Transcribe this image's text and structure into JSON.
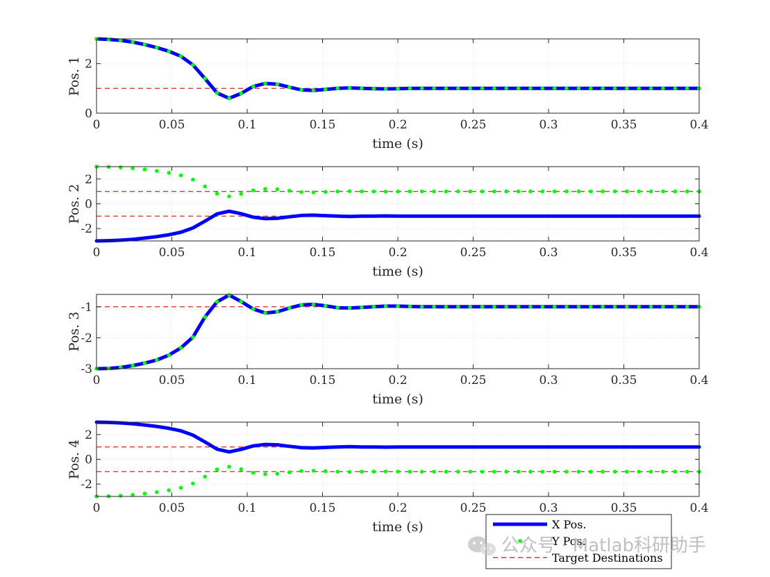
{
  "chart_data": [
    {
      "type": "line",
      "ylabel": "Pos. 1",
      "xlabel": "time (s)",
      "xlim": [
        0,
        0.4
      ],
      "ylim": [
        0,
        3
      ],
      "xticks": [
        0,
        0.05,
        0.1,
        0.15,
        0.2,
        0.25,
        0.3,
        0.35,
        0.4
      ],
      "xtick_labels": [
        "0",
        "0.05",
        "0.1",
        "0.15",
        "0.2",
        "0.25",
        "0.3",
        "0.35",
        "0.4"
      ],
      "yticks": [
        0,
        2
      ],
      "ytick_labels": [
        "0",
        "2"
      ],
      "grid": true,
      "x": [
        0,
        0.008,
        0.016,
        0.024,
        0.032,
        0.04,
        0.048,
        0.056,
        0.064,
        0.072,
        0.08,
        0.088,
        0.096,
        0.104,
        0.112,
        0.12,
        0.128,
        0.136,
        0.144,
        0.152,
        0.16,
        0.168,
        0.176,
        0.184,
        0.192,
        0.2,
        0.208,
        0.216,
        0.224,
        0.232,
        0.24,
        0.248,
        0.256,
        0.264,
        0.272,
        0.28,
        0.288,
        0.296,
        0.304,
        0.312,
        0.32,
        0.328,
        0.336,
        0.344,
        0.352,
        0.36,
        0.368,
        0.376,
        0.384,
        0.392,
        0.4
      ],
      "series": [
        {
          "values": [
            3.0,
            2.98,
            2.94,
            2.87,
            2.77,
            2.65,
            2.5,
            2.3,
            1.95,
            1.4,
            0.82,
            0.6,
            0.8,
            1.08,
            1.2,
            1.17,
            1.05,
            0.94,
            0.92,
            0.96,
            1.0,
            1.02,
            1.0,
            0.99,
            0.98,
            0.99,
            1.0,
            1.0,
            1.0,
            1.0,
            1.0,
            1.0,
            1.0,
            1.0,
            1.0,
            1.0,
            1.0,
            1.0,
            1.0,
            1.0,
            1.0,
            1.0,
            1.0,
            1.0,
            1.0,
            1.0,
            1.0,
            1.0,
            1.0,
            1.0,
            1.0
          ]
        },
        {
          "values": [
            3.0,
            2.98,
            2.94,
            2.87,
            2.77,
            2.65,
            2.5,
            2.3,
            1.95,
            1.4,
            0.82,
            0.6,
            0.8,
            1.08,
            1.2,
            1.17,
            1.05,
            0.94,
            0.92,
            0.96,
            1.0,
            1.02,
            1.0,
            0.99,
            0.98,
            0.99,
            1.0,
            1.0,
            1.0,
            1.0,
            1.0,
            1.0,
            1.0,
            1.0,
            1.0,
            1.0,
            1.0,
            1.0,
            1.0,
            1.0,
            1.0,
            1.0,
            1.0,
            1.0,
            1.0,
            1.0,
            1.0,
            1.0,
            1.0,
            1.0,
            1.0
          ]
        }
      ],
      "targets": [
        1
      ]
    },
    {
      "type": "line",
      "ylabel": "Pos. 2",
      "xlabel": "time (s)",
      "xlim": [
        0,
        0.4
      ],
      "ylim": [
        -3,
        3
      ],
      "xticks": [
        0,
        0.05,
        0.1,
        0.15,
        0.2,
        0.25,
        0.3,
        0.35,
        0.4
      ],
      "xtick_labels": [
        "0",
        "0.05",
        "0.1",
        "0.15",
        "0.2",
        "0.25",
        "0.3",
        "0.35",
        "0.4"
      ],
      "yticks": [
        -2,
        0,
        2
      ],
      "ytick_labels": [
        "-2",
        "0",
        "2"
      ],
      "grid": true,
      "x": [
        0,
        0.008,
        0.016,
        0.024,
        0.032,
        0.04,
        0.048,
        0.056,
        0.064,
        0.072,
        0.08,
        0.088,
        0.096,
        0.104,
        0.112,
        0.12,
        0.128,
        0.136,
        0.144,
        0.152,
        0.16,
        0.168,
        0.176,
        0.184,
        0.192,
        0.2,
        0.208,
        0.216,
        0.224,
        0.232,
        0.24,
        0.248,
        0.256,
        0.264,
        0.272,
        0.28,
        0.288,
        0.296,
        0.304,
        0.312,
        0.32,
        0.328,
        0.336,
        0.344,
        0.352,
        0.36,
        0.368,
        0.376,
        0.384,
        0.392,
        0.4
      ],
      "series": [
        {
          "values": [
            -3.0,
            -2.98,
            -2.94,
            -2.87,
            -2.77,
            -2.65,
            -2.5,
            -2.3,
            -1.95,
            -1.4,
            -0.82,
            -0.6,
            -0.8,
            -1.08,
            -1.2,
            -1.17,
            -1.05,
            -0.94,
            -0.92,
            -0.96,
            -1.0,
            -1.02,
            -1.0,
            -0.99,
            -0.98,
            -0.99,
            -1.0,
            -1.0,
            -1.0,
            -1.0,
            -1.0,
            -1.0,
            -1.0,
            -1.0,
            -1.0,
            -1.0,
            -1.0,
            -1.0,
            -1.0,
            -1.0,
            -1.0,
            -1.0,
            -1.0,
            -1.0,
            -1.0,
            -1.0,
            -1.0,
            -1.0,
            -1.0,
            -1.0,
            -1.0
          ]
        },
        {
          "values": [
            3.0,
            2.98,
            2.94,
            2.87,
            2.77,
            2.65,
            2.5,
            2.3,
            1.95,
            1.4,
            0.82,
            0.6,
            0.8,
            1.08,
            1.2,
            1.17,
            1.05,
            0.94,
            0.92,
            0.96,
            1.0,
            1.02,
            1.0,
            0.99,
            0.98,
            0.99,
            1.0,
            1.0,
            1.0,
            1.0,
            1.0,
            1.0,
            1.0,
            1.0,
            1.0,
            1.0,
            1.0,
            1.0,
            1.0,
            1.0,
            1.0,
            1.0,
            1.0,
            1.0,
            1.0,
            1.0,
            1.0,
            1.0,
            1.0,
            1.0,
            1.0
          ]
        }
      ],
      "targets": [
        1,
        -1
      ]
    },
    {
      "type": "line",
      "ylabel": "Pos. 3",
      "xlabel": "time (s)",
      "xlim": [
        0,
        0.4
      ],
      "ylim": [
        -3,
        -0.6
      ],
      "xticks": [
        0,
        0.05,
        0.1,
        0.15,
        0.2,
        0.25,
        0.3,
        0.35,
        0.4
      ],
      "xtick_labels": [
        "0",
        "0.05",
        "0.1",
        "0.15",
        "0.2",
        "0.25",
        "0.3",
        "0.35",
        "0.4"
      ],
      "yticks": [
        -3,
        -2,
        -1
      ],
      "ytick_labels": [
        "-3",
        "-2",
        "-1"
      ],
      "grid": true,
      "x": [
        0,
        0.008,
        0.016,
        0.024,
        0.032,
        0.04,
        0.048,
        0.056,
        0.064,
        0.072,
        0.08,
        0.088,
        0.096,
        0.104,
        0.112,
        0.12,
        0.128,
        0.136,
        0.144,
        0.152,
        0.16,
        0.168,
        0.176,
        0.184,
        0.192,
        0.2,
        0.208,
        0.216,
        0.224,
        0.232,
        0.24,
        0.248,
        0.256,
        0.264,
        0.272,
        0.28,
        0.288,
        0.296,
        0.304,
        0.312,
        0.32,
        0.328,
        0.336,
        0.344,
        0.352,
        0.36,
        0.368,
        0.376,
        0.384,
        0.392,
        0.4
      ],
      "series": [
        {
          "values": [
            -3.0,
            -2.99,
            -2.96,
            -2.9,
            -2.82,
            -2.72,
            -2.56,
            -2.33,
            -1.98,
            -1.33,
            -0.84,
            -0.62,
            -0.83,
            -1.07,
            -1.2,
            -1.16,
            -1.04,
            -0.94,
            -0.92,
            -0.97,
            -1.03,
            -1.04,
            -1.02,
            -1.0,
            -0.98,
            -0.98,
            -0.99,
            -1.0,
            -1.0,
            -1.0,
            -1.0,
            -1.0,
            -1.0,
            -1.0,
            -1.0,
            -1.0,
            -1.0,
            -1.0,
            -1.0,
            -1.0,
            -1.0,
            -1.0,
            -1.0,
            -1.0,
            -1.0,
            -1.0,
            -1.0,
            -1.0,
            -1.0,
            -1.0,
            -1.0
          ]
        },
        {
          "values": [
            -3.0,
            -2.99,
            -2.96,
            -2.9,
            -2.82,
            -2.72,
            -2.56,
            -2.33,
            -1.98,
            -1.33,
            -0.84,
            -0.62,
            -0.83,
            -1.07,
            -1.2,
            -1.16,
            -1.04,
            -0.94,
            -0.92,
            -0.97,
            -1.03,
            -1.04,
            -1.02,
            -1.0,
            -0.98,
            -0.98,
            -0.99,
            -1.0,
            -1.0,
            -1.0,
            -1.0,
            -1.0,
            -1.0,
            -1.0,
            -1.0,
            -1.0,
            -1.0,
            -1.0,
            -1.0,
            -1.0,
            -1.0,
            -1.0,
            -1.0,
            -1.0,
            -1.0,
            -1.0,
            -1.0,
            -1.0,
            -1.0,
            -1.0,
            -1.0
          ]
        }
      ],
      "targets": [
        -1
      ]
    },
    {
      "type": "line",
      "ylabel": "Pos. 4",
      "xlabel": "time (s)",
      "xlim": [
        0,
        0.4
      ],
      "ylim": [
        -3,
        3
      ],
      "xticks": [
        0,
        0.05,
        0.1,
        0.15,
        0.2,
        0.25,
        0.3,
        0.35,
        0.4
      ],
      "xtick_labels": [
        "0",
        "0.05",
        "0.1",
        "0.15",
        "0.2",
        "0.25",
        "0.3",
        "0.35",
        "0.4"
      ],
      "yticks": [
        -2,
        0,
        2
      ],
      "ytick_labels": [
        "-2",
        "0",
        "2"
      ],
      "grid": true,
      "x": [
        0,
        0.008,
        0.016,
        0.024,
        0.032,
        0.04,
        0.048,
        0.056,
        0.064,
        0.072,
        0.08,
        0.088,
        0.096,
        0.104,
        0.112,
        0.12,
        0.128,
        0.136,
        0.144,
        0.152,
        0.16,
        0.168,
        0.176,
        0.184,
        0.192,
        0.2,
        0.208,
        0.216,
        0.224,
        0.232,
        0.24,
        0.248,
        0.256,
        0.264,
        0.272,
        0.28,
        0.288,
        0.296,
        0.304,
        0.312,
        0.32,
        0.328,
        0.336,
        0.344,
        0.352,
        0.36,
        0.368,
        0.376,
        0.384,
        0.392,
        0.4
      ],
      "series": [
        {
          "values": [
            3.0,
            2.98,
            2.94,
            2.87,
            2.77,
            2.65,
            2.5,
            2.3,
            1.95,
            1.4,
            0.82,
            0.6,
            0.8,
            1.08,
            1.2,
            1.17,
            1.05,
            0.94,
            0.92,
            0.96,
            1.0,
            1.02,
            1.0,
            0.99,
            0.98,
            0.99,
            1.0,
            1.0,
            1.0,
            1.0,
            1.0,
            1.0,
            1.0,
            1.0,
            1.0,
            1.0,
            1.0,
            1.0,
            1.0,
            1.0,
            1.0,
            1.0,
            1.0,
            1.0,
            1.0,
            1.0,
            1.0,
            1.0,
            1.0,
            1.0,
            1.0
          ]
        },
        {
          "values": [
            -3.0,
            -2.98,
            -2.94,
            -2.87,
            -2.77,
            -2.65,
            -2.5,
            -2.3,
            -1.95,
            -1.4,
            -0.82,
            -0.6,
            -0.8,
            -1.08,
            -1.2,
            -1.17,
            -1.05,
            -0.94,
            -0.92,
            -0.96,
            -1.0,
            -1.02,
            -1.0,
            -0.99,
            -0.98,
            -0.99,
            -1.0,
            -1.0,
            -1.0,
            -1.0,
            -1.0,
            -1.0,
            -1.0,
            -1.0,
            -1.0,
            -1.0,
            -1.0,
            -1.0,
            -1.0,
            -1.0,
            -1.0,
            -1.0,
            -1.0,
            -1.0,
            -1.0,
            -1.0,
            -1.0,
            -1.0,
            -1.0,
            -1.0,
            -1.0
          ]
        }
      ],
      "targets": [
        1,
        -1
      ]
    }
  ],
  "legend": {
    "placement": "bottom-right",
    "entries": [
      {
        "label": "X Pos.",
        "style": "solid-line",
        "color": "#0000ff"
      },
      {
        "label": "Y Pos.",
        "style": "dots",
        "color": "#00ff00"
      },
      {
        "label": "Target Destinations",
        "style": "dashed-line",
        "color": "#e8342e"
      }
    ]
  },
  "watermark": {
    "text": "公众号 · Matlab科研助手",
    "icon": "wechat-icon"
  },
  "colors": {
    "x_series": "#0000ff",
    "y_series": "#00ff00",
    "target": "#e8342e",
    "axes": "#262626",
    "grid": "#e6e6e6"
  }
}
